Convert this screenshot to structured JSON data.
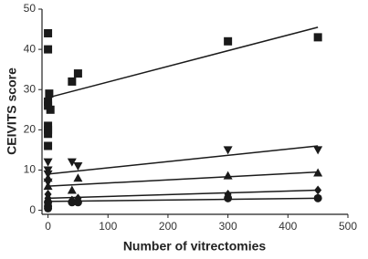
{
  "chart_data": {
    "type": "scatter",
    "xlabel": "Number of vitrectomies",
    "ylabel": "CEIVITS score",
    "xlim": [
      -10,
      500
    ],
    "ylim": [
      -1,
      50
    ],
    "xticks": [
      0,
      100,
      200,
      300,
      400,
      500
    ],
    "yticks": [
      0,
      10,
      20,
      30,
      40,
      50
    ],
    "grid": false,
    "series": [
      {
        "marker": "square",
        "color": "#1a1a1a",
        "x": [
          0,
          0,
          2,
          0,
          0,
          4,
          0,
          0,
          0,
          0,
          40,
          50,
          300,
          450
        ],
        "values": [
          44,
          40,
          29,
          27,
          26,
          25,
          21,
          20,
          19,
          16,
          32,
          34,
          42,
          43
        ],
        "trend_x": [
          0,
          450
        ],
        "trend_values": [
          28,
          45.5
        ]
      },
      {
        "marker": "triangle-down",
        "color": "#1a1a1a",
        "x": [
          0,
          0,
          0,
          0,
          40,
          50,
          300,
          450
        ],
        "values": [
          12,
          10,
          9,
          7,
          12,
          11,
          15,
          15
        ],
        "trend_x": [
          0,
          450
        ],
        "trend_values": [
          9,
          16
        ]
      },
      {
        "marker": "triangle-up",
        "color": "#1a1a1a",
        "x": [
          0,
          0,
          40,
          50,
          300,
          450
        ],
        "values": [
          8,
          6,
          5,
          8,
          8.6,
          9.3
        ],
        "trend_x": [
          0,
          450
        ],
        "trend_values": [
          6,
          9.5
        ]
      },
      {
        "marker": "diamond",
        "color": "#1a1a1a",
        "x": [
          0,
          0,
          0,
          0,
          40,
          50,
          300,
          450
        ],
        "values": [
          4,
          3,
          2,
          1,
          2.5,
          3,
          4,
          5
        ],
        "trend_x": [
          0,
          450
        ],
        "trend_values": [
          3,
          5
        ]
      },
      {
        "marker": "circle",
        "color": "#1a1a1a",
        "x": [
          0,
          0,
          0,
          40,
          50,
          300,
          450
        ],
        "values": [
          2,
          1,
          0.5,
          2,
          2,
          3,
          3
        ],
        "trend_x": [
          0,
          450
        ],
        "trend_values": [
          2.2,
          3
        ]
      }
    ]
  }
}
